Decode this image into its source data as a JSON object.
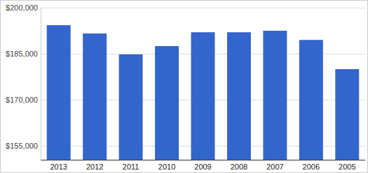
{
  "chart_data": {
    "type": "bar",
    "categories": [
      "2013",
      "2012",
      "2011",
      "2010",
      "2009",
      "2008",
      "2007",
      "2006",
      "2005"
    ],
    "values": [
      194300,
      191600,
      184800,
      187500,
      192000,
      192000,
      192500,
      189500,
      180000
    ],
    "color": "#3366cc",
    "ylim": [
      150500,
      200000
    ],
    "yticks": [
      {
        "value": 155000,
        "label": "$155,000"
      },
      {
        "value": 170000,
        "label": "$170,000"
      },
      {
        "value": 185000,
        "label": "$185,000"
      },
      {
        "value": 200000,
        "label": "$200,000"
      }
    ],
    "grid": true
  }
}
